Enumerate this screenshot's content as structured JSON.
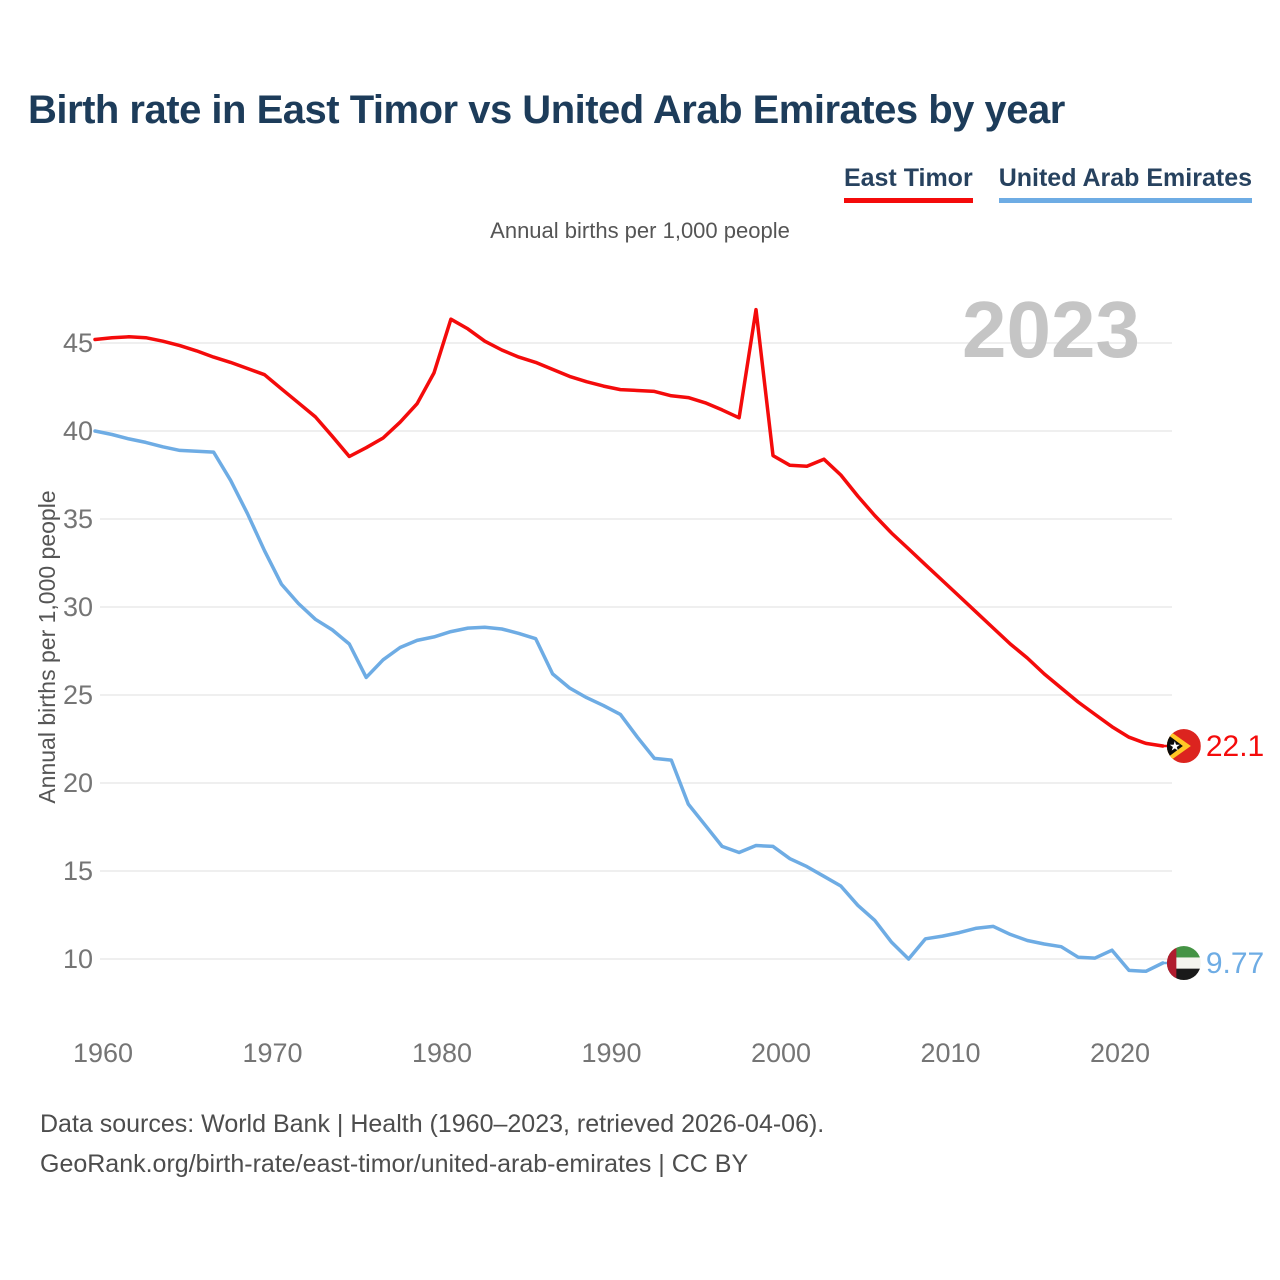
{
  "title": "Birth rate in East Timor vs United Arab Emirates by year",
  "subtitle": "Annual births per 1,000 people",
  "y_axis_title": "Annual births per 1,000 people",
  "watermark": "2023",
  "legend": {
    "east_timor_label": "East Timor",
    "uae_label": "United Arab Emirates"
  },
  "footer": {
    "line1": "Data sources: World Bank | Health (1960–2023, retrieved 2026-04-06).",
    "line2": "GeoRank.org/birth-rate/east-timor/united-arab-emirates | CC BY"
  },
  "colors": {
    "east_timor": "#f40b0b",
    "uae": "#6eace4",
    "grid": "#eaeaea",
    "tick_text": "#757575",
    "watermark": "#c5c5c5"
  },
  "chart_data": {
    "type": "line",
    "title": "Birth rate in East Timor vs United Arab Emirates by year",
    "ylabel": "Annual births per 1,000 people",
    "grid": "horizontal",
    "legend_position": "top-right",
    "xlim": [
      1960,
      2023
    ],
    "ylim": [
      8,
      48
    ],
    "x_ticks": [
      1960,
      1970,
      1980,
      1990,
      2000,
      2010,
      2020
    ],
    "y_ticks": [
      10,
      15,
      20,
      25,
      30,
      35,
      40,
      45
    ],
    "years": [
      1960,
      1961,
      1962,
      1963,
      1964,
      1965,
      1966,
      1967,
      1968,
      1969,
      1970,
      1971,
      1972,
      1973,
      1974,
      1975,
      1976,
      1977,
      1978,
      1979,
      1980,
      1981,
      1982,
      1983,
      1984,
      1985,
      1986,
      1987,
      1988,
      1989,
      1990,
      1991,
      1992,
      1993,
      1994,
      1995,
      1996,
      1997,
      1998,
      1999,
      2000,
      2001,
      2002,
      2003,
      2004,
      2005,
      2006,
      2007,
      2008,
      2009,
      2010,
      2011,
      2012,
      2013,
      2014,
      2015,
      2016,
      2017,
      2018,
      2019,
      2020,
      2021,
      2022,
      2023
    ],
    "series": [
      {
        "name": "East Timor",
        "color": "#f40b0b",
        "end_label": "22.1",
        "values": [
          45.2,
          45.3,
          45.35,
          45.3,
          45.1,
          44.85,
          44.55,
          44.2,
          43.9,
          43.55,
          43.2,
          42.4,
          41.6,
          40.8,
          39.7,
          38.55,
          39.05,
          39.6,
          40.5,
          41.55,
          43.3,
          46.35,
          45.8,
          45.1,
          44.6,
          44.2,
          43.9,
          43.5,
          43.1,
          42.8,
          42.55,
          42.35,
          42.3,
          42.25,
          42.0,
          41.9,
          41.6,
          41.2,
          40.75,
          46.9,
          38.6,
          38.05,
          38.0,
          38.4,
          37.5,
          36.3,
          35.2,
          34.2,
          33.3,
          32.4,
          31.5,
          30.6,
          29.7,
          28.8,
          27.9,
          27.1,
          26.2,
          25.4,
          24.6,
          23.9,
          23.2,
          22.6,
          22.25,
          22.1
        ]
      },
      {
        "name": "United Arab Emirates",
        "color": "#6eace4",
        "end_label": "9.77",
        "values": [
          40.0,
          39.8,
          39.55,
          39.35,
          39.1,
          38.9,
          38.85,
          38.8,
          37.2,
          35.3,
          33.2,
          31.3,
          30.2,
          29.3,
          28.7,
          27.9,
          26.0,
          27.0,
          27.7,
          28.1,
          28.3,
          28.6,
          28.8,
          28.85,
          28.75,
          28.5,
          28.2,
          26.2,
          25.4,
          24.85,
          24.4,
          23.9,
          22.6,
          21.4,
          21.3,
          18.8,
          17.6,
          16.4,
          16.05,
          16.45,
          16.4,
          15.7,
          15.25,
          14.7,
          14.15,
          13.05,
          12.2,
          10.95,
          10.0,
          11.15,
          11.3,
          11.5,
          11.75,
          11.85,
          11.4,
          11.05,
          10.85,
          10.7,
          10.1,
          10.05,
          10.5,
          9.35,
          9.3,
          9.77
        ]
      }
    ]
  }
}
